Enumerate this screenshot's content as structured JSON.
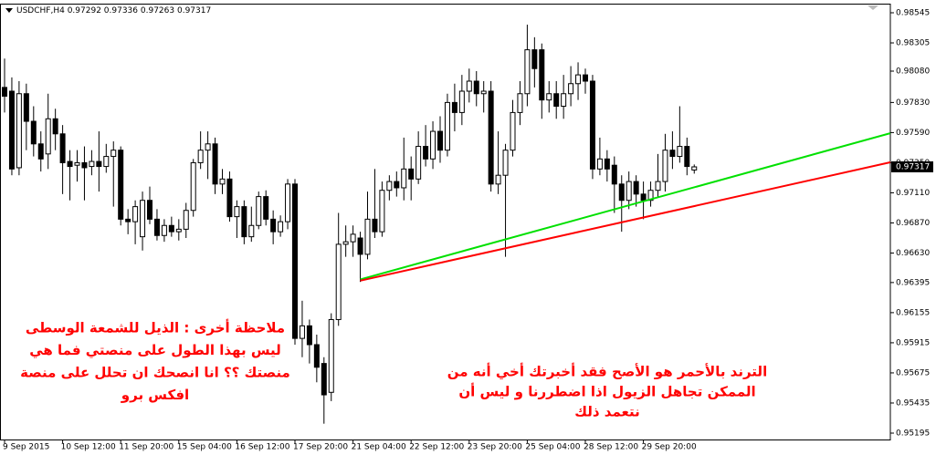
{
  "chart_data": {
    "type": "candlestick",
    "symbol": "USDCHF,H4",
    "x": [
      "9 Sep 2015",
      null,
      null,
      null,
      null,
      null,
      null,
      null,
      "10 Sep 12:00",
      null,
      null,
      null,
      null,
      null,
      null,
      null,
      "11 Sep 20:00",
      null,
      null,
      null,
      null,
      null,
      null,
      null,
      "15 Sep 04:00",
      null,
      null,
      null,
      null,
      null,
      null,
      null,
      "16 Sep 12:00",
      null,
      null,
      null,
      null,
      null,
      null,
      null,
      "17 Sep 20:00",
      null,
      null,
      null,
      null,
      null,
      null,
      null,
      "21 Sep 04:00",
      null,
      null,
      null,
      null,
      null,
      null,
      null,
      "22 Sep 12:00",
      null,
      null,
      null,
      null,
      null,
      null,
      null,
      "23 Sep 20:00",
      null,
      null,
      null,
      null,
      null,
      null,
      null,
      "25 Sep 04:00",
      null,
      null,
      null,
      null,
      null,
      null,
      null,
      "28 Sep 12:00",
      null,
      null,
      null,
      null,
      null,
      null,
      null,
      "29 Sep 20:00",
      null,
      null,
      null,
      null,
      null,
      null,
      null
    ],
    "open": [
      0.9795,
      0.9792,
      0.9731,
      0.979,
      0.9768,
      0.975,
      0.9742,
      0.977,
      0.9758,
      0.9736,
      0.9733,
      0.9735,
      0.9732,
      0.9736,
      0.9732,
      0.974,
      0.9745,
      0.969,
      0.9688,
      0.9676,
      0.9705,
      0.969,
      0.9677,
      0.9685,
      0.968,
      0.9682,
      0.9697,
      0.9735,
      0.9745,
      0.975,
      0.9718,
      0.9722,
      0.9692,
      0.97,
      0.9676,
      0.9685,
      0.9708,
      0.969,
      0.968,
      0.9688,
      0.9718,
      0.9595,
      0.9605,
      0.959,
      0.9575,
      0.9552,
      0.961,
      0.967,
      0.9672,
      0.9675,
      0.9662,
      0.969,
      0.968,
      0.9713,
      0.972,
      0.9715,
      0.973,
      0.9722,
      0.9748,
      0.9738,
      0.976,
      0.9745,
      0.9783,
      0.9775,
      0.9792,
      0.98,
      0.979,
      0.9792,
      0.9718,
      0.9725,
      0.9745,
      0.9775,
      0.979,
      0.9825,
      0.9825,
      0.9785,
      0.979,
      0.978,
      0.979,
      0.9798,
      0.9805,
      0.98,
      0.973,
      0.9738,
      0.9733,
      0.9718,
      0.9705,
      0.972,
      0.971,
      0.9705,
      0.9713,
      0.972,
      0.9745,
      0.974,
      0.9748,
      0.97292
    ],
    "high": [
      0.9818,
      0.9803,
      0.98,
      0.9798,
      0.978,
      0.976,
      0.979,
      0.9778,
      0.9765,
      0.9745,
      0.9745,
      0.9748,
      0.9745,
      0.976,
      0.975,
      0.9752,
      0.9748,
      0.9698,
      0.9705,
      0.9712,
      0.9716,
      0.9698,
      0.969,
      0.9692,
      0.969,
      0.9703,
      0.9738,
      0.976,
      0.976,
      0.9755,
      0.973,
      0.9728,
      0.9705,
      0.9705,
      0.97,
      0.9712,
      0.9713,
      0.9697,
      0.9693,
      0.9722,
      0.9722,
      0.9625,
      0.961,
      0.9598,
      0.958,
      0.9615,
      0.9695,
      0.9685,
      0.9685,
      0.968,
      0.9712,
      0.973,
      0.972,
      0.9725,
      0.9728,
      0.9755,
      0.974,
      0.976,
      0.9765,
      0.9768,
      0.9772,
      0.979,
      0.9798,
      0.9805,
      0.981,
      0.9808,
      0.98,
      0.98,
      0.976,
      0.975,
      0.9785,
      0.98,
      0.9845,
      0.9835,
      0.983,
      0.98,
      0.98,
      0.9805,
      0.9812,
      0.9815,
      0.981,
      0.9805,
      0.9755,
      0.9745,
      0.974,
      0.9725,
      0.9728,
      0.9725,
      0.972,
      0.972,
      0.9742,
      0.9758,
      0.976,
      0.978,
      0.9755,
      0.97336
    ],
    "low": [
      0.9775,
      0.9725,
      0.9725,
      0.9745,
      0.974,
      0.9728,
      0.973,
      0.9745,
      0.971,
      0.9705,
      0.972,
      0.9705,
      0.9725,
      0.9712,
      0.9727,
      0.97,
      0.9685,
      0.9678,
      0.967,
      0.9665,
      0.9686,
      0.9673,
      0.9672,
      0.9676,
      0.9673,
      0.9675,
      0.9692,
      0.973,
      0.9722,
      0.971,
      0.971,
      0.9688,
      0.9675,
      0.967,
      0.9672,
      0.9682,
      0.9685,
      0.967,
      0.9676,
      0.9682,
      0.959,
      0.958,
      0.9575,
      0.956,
      0.9527,
      0.9545,
      0.9605,
      0.966,
      0.966,
      0.964,
      0.9658,
      0.9675,
      0.9676,
      0.9705,
      0.9708,
      0.9705,
      0.9705,
      0.9718,
      0.9732,
      0.973,
      0.9735,
      0.974,
      0.976,
      0.9765,
      0.9783,
      0.978,
      0.9775,
      0.9712,
      0.971,
      0.966,
      0.974,
      0.9765,
      0.978,
      0.9795,
      0.977,
      0.9775,
      0.977,
      0.977,
      0.978,
      0.9785,
      0.979,
      0.9722,
      0.9725,
      0.972,
      0.9695,
      0.968,
      0.9698,
      0.97,
      0.969,
      0.97,
      0.9708,
      0.9712,
      0.973,
      0.9735,
      0.9725,
      0.97263
    ],
    "close": [
      0.9788,
      0.973,
      0.979,
      0.9768,
      0.975,
      0.9738,
      0.977,
      0.9758,
      0.9735,
      0.9732,
      0.9735,
      0.9731,
      0.9736,
      0.9732,
      0.974,
      0.9745,
      0.969,
      0.9688,
      0.97,
      0.9705,
      0.969,
      0.9677,
      0.9685,
      0.968,
      0.9682,
      0.9697,
      0.9735,
      0.9745,
      0.975,
      0.9718,
      0.9722,
      0.9692,
      0.97,
      0.9676,
      0.9685,
      0.9708,
      0.969,
      0.968,
      0.9688,
      0.9718,
      0.9595,
      0.9605,
      0.959,
      0.9572,
      0.955,
      0.961,
      0.967,
      0.9672,
      0.9678,
      0.9662,
      0.969,
      0.968,
      0.9713,
      0.972,
      0.9715,
      0.973,
      0.9722,
      0.9748,
      0.9738,
      0.976,
      0.9745,
      0.9783,
      0.9775,
      0.9792,
      0.98,
      0.979,
      0.9792,
      0.9718,
      0.9725,
      0.9745,
      0.9775,
      0.979,
      0.9825,
      0.981,
      0.9785,
      0.979,
      0.978,
      0.979,
      0.9798,
      0.9805,
      0.98,
      0.973,
      0.9738,
      0.973,
      0.9718,
      0.9705,
      0.972,
      0.971,
      0.9705,
      0.9713,
      0.972,
      0.9745,
      0.974,
      0.9748,
      0.9732,
      0.97317
    ],
    "ylim": [
      0.95195,
      0.98545
    ],
    "yticks": [
      0.98545,
      0.98305,
      {
        "value": 0.9808,
        "label": "0.98080"
      },
      {
        "value": 0.9783,
        "label": "0.97830"
      },
      {
        "value": 0.9759,
        "label": "0.97590"
      },
      {
        "value": 0.9735,
        "label": "0.97350"
      },
      {
        "value": 0.9711,
        "label": "0.97110"
      },
      {
        "value": 0.9687,
        "label": "0.96870"
      },
      {
        "value": 0.9663,
        "label": "0.96630"
      },
      0.96395,
      0.96155,
      0.95915,
      0.95675,
      0.95435,
      0.95195
    ],
    "bull_color": "#ffffff",
    "bear_color": "#000000",
    "trend_lines": [
      {
        "color": "#00e000",
        "start": [
          49,
          0.9642
        ],
        "end": [
          122,
          0.97585
        ]
      },
      {
        "color": "#ff0000",
        "start": [
          49,
          0.9641
        ],
        "end": [
          122,
          0.97353
        ]
      }
    ],
    "annotations": [
      {
        "color": "#ff0000",
        "lines": [
          "ملاحظة أخرى : الذيل للشمعة الوسطى",
          "ليس بهذا الطول على منصتي فما هي",
          "منصتك ؟؟ انا انصحك ان تحلل على منصة",
          "افكس برو"
        ]
      },
      {
        "color": "#ff0000",
        "lines": [
          "الترند بالأحمر هو الأصح فقد أخبرتك أخي أنه من",
          "الممكن تجاهل الزيول اذا اضطررنا و ليس أن",
          "نتعمد ذلك"
        ]
      }
    ]
  }
}
